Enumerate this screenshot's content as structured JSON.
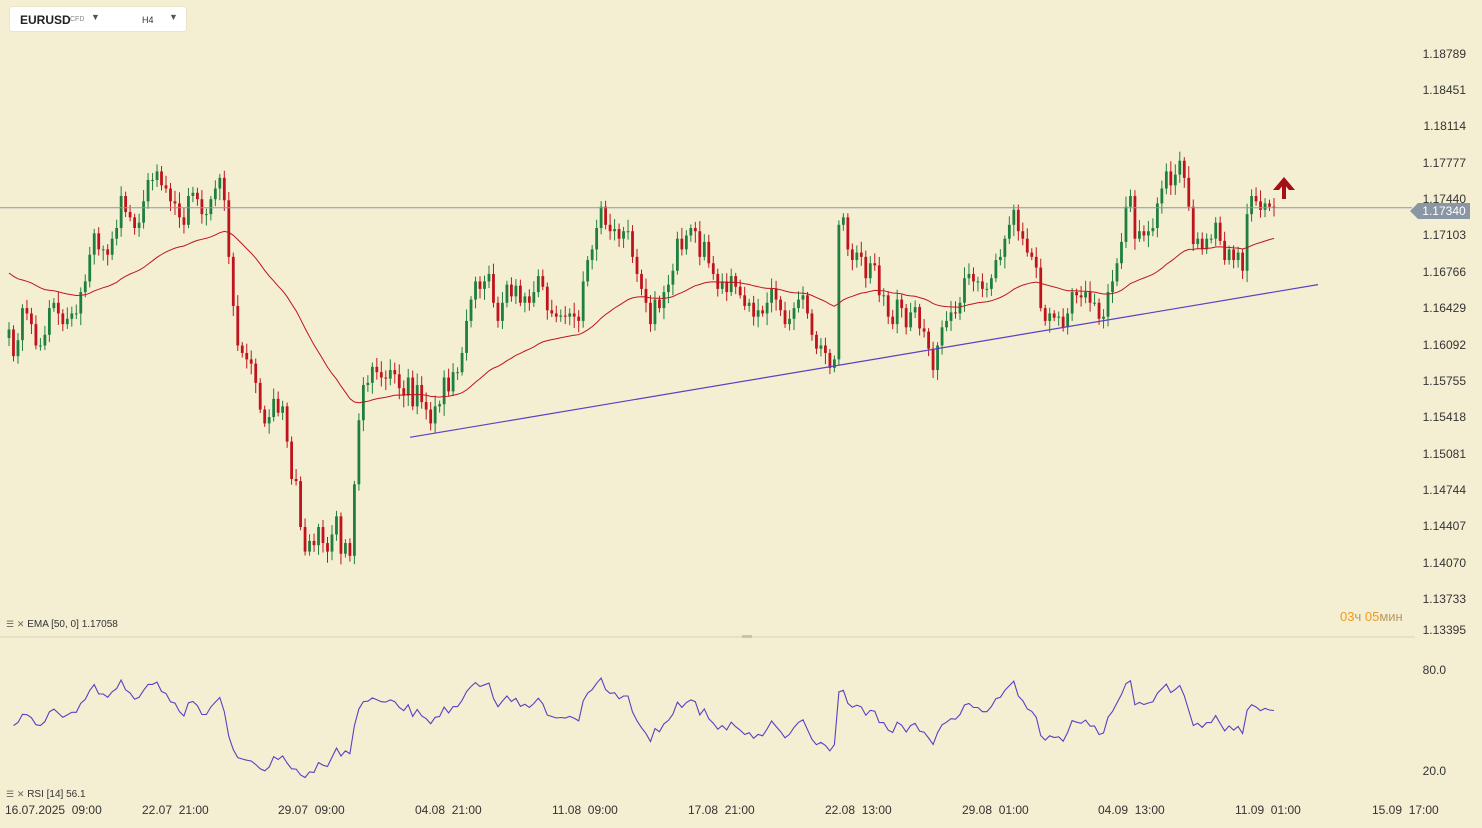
{
  "toolbar": {
    "symbol": "EURUSD",
    "symbol_type": "CFD",
    "timeframe": "H4",
    "dropdown_icon": "caret-down-icon"
  },
  "price_axis": {
    "labels": [
      "1.18789",
      "1.18451",
      "1.18114",
      "1.17777",
      "1.17440",
      "1.17103",
      "1.16766",
      "1.16429",
      "1.16092",
      "1.15755",
      "1.15418",
      "1.15081",
      "1.14744",
      "1.14407",
      "1.14070",
      "1.13733",
      "1.13395"
    ],
    "current_price": "1.17340"
  },
  "timer": {
    "hours": "03",
    "hours_unit": "ч",
    "minutes": "05",
    "minutes_unit": "мин"
  },
  "indicators": {
    "ema": {
      "label": "EMA",
      "params": "[50, 0]",
      "value": "1.17058"
    },
    "rsi": {
      "label": "RSI",
      "params": "[14]",
      "value": "56.1"
    }
  },
  "rsi_axis": {
    "labels": [
      "80.0",
      "20.0"
    ]
  },
  "time_axis": {
    "labels": [
      "16.07.2025  09:00",
      "22.07  21:00",
      "29.07  09:00",
      "04.08  21:00",
      "11.08  09:00",
      "17.08  21:00",
      "22.08  13:00",
      "29.08  01:00",
      "04.09  13:00",
      "11.09  01:00",
      "15.09  17:00"
    ]
  },
  "colors": {
    "background": "#f4efd2",
    "bull": "#1f7f3e",
    "bear": "#c0141c",
    "ema": "#c0141c",
    "trendline": "#5b3fc4",
    "rsi": "#5b3fc4",
    "signal_arrow": "#a30f14",
    "price_line": "#8a96a4"
  },
  "chart_data": {
    "type": "candlestick",
    "price_range": [
      1.13395,
      1.19
    ],
    "rsi_range": [
      0,
      100
    ],
    "signal": "arrow-up",
    "trendline": {
      "from": [
        "04.08 21:00",
        1.1519
      ],
      "to": [
        "12.09",
        1.1662
      ]
    },
    "close": [
      1.162,
      1.1595,
      1.161,
      1.164,
      1.1635,
      1.1625,
      1.1605,
      1.1605,
      1.1615,
      1.164,
      1.1645,
      1.1635,
      1.1625,
      1.163,
      1.1635,
      1.1635,
      1.1655,
      1.1665,
      1.169,
      1.171,
      1.1695,
      1.1695,
      1.169,
      1.1705,
      1.1715,
      1.1745,
      1.173,
      1.1725,
      1.1715,
      1.172,
      1.174,
      1.176,
      1.176,
      1.1768,
      1.1755,
      1.1752,
      1.174,
      1.1738,
      1.1725,
      1.1718,
      1.1745,
      1.1748,
      1.1742,
      1.1728,
      1.1728,
      1.1742,
      1.1752,
      1.1762,
      1.1741,
      1.1688,
      1.1642,
      1.1605,
      1.1598,
      1.1592,
      1.1588,
      1.157,
      1.1545,
      1.1532,
      1.1538,
      1.1555,
      1.1542,
      1.1548,
      1.1515,
      1.148,
      1.1478,
      1.1435,
      1.1412,
      1.1422,
      1.1418,
      1.1435,
      1.142,
      1.1412,
      1.1428,
      1.1445,
      1.141,
      1.142,
      1.1408,
      1.1475,
      1.1535,
      1.1568,
      1.157,
      1.1585,
      1.158,
      1.1575,
      1.1574,
      1.1582,
      1.1578,
      1.1565,
      1.1558,
      1.1575,
      1.1548,
      1.1568,
      1.1552,
      1.1545,
      1.1532,
      1.1548,
      1.155,
      1.1575,
      1.1562,
      1.158,
      1.158,
      1.1598,
      1.1628,
      1.1648,
      1.1665,
      1.1658,
      1.1665,
      1.1672,
      1.1645,
      1.1628,
      1.1645,
      1.1662,
      1.1651,
      1.1661,
      1.1645,
      1.1651,
      1.1645,
      1.1655,
      1.167,
      1.166,
      1.1638,
      1.1635,
      1.1632,
      1.1633,
      1.1632,
      1.1635,
      1.1632,
      1.1628,
      1.1665,
      1.1685,
      1.1695,
      1.1715,
      1.1735,
      1.1718,
      1.1712,
      1.1714,
      1.1705,
      1.1712,
      1.1712,
      1.1688,
      1.1672,
      1.1658,
      1.1645,
      1.1625,
      1.1648,
      1.164,
      1.1655,
      1.1662,
      1.1675,
      1.1705,
      1.1695,
      1.1708,
      1.1715,
      1.1712,
      1.1688,
      1.1702,
      1.1682,
      1.1672,
      1.1658,
      1.1665,
      1.1655,
      1.167,
      1.166,
      1.1652,
      1.1642,
      1.1645,
      1.1632,
      1.1638,
      1.1635,
      1.1645,
      1.1658,
      1.1648,
      1.1638,
      1.1625,
      1.163,
      1.164,
      1.1648,
      1.1652,
      1.1635,
      1.1615,
      1.1602,
      1.1605,
      1.1598,
      1.1584,
      1.1592,
      1.1718,
      1.1725,
      1.1695,
      1.1685,
      1.1692,
      1.1688,
      1.1668,
      1.1682,
      1.168,
      1.1652,
      1.1652,
      1.1632,
      1.1625,
      1.1648,
      1.164,
      1.1622,
      1.1636,
      1.1641,
      1.1621,
      1.1618,
      1.1602,
      1.1582,
      1.1605,
      1.1622,
      1.1628,
      1.1636,
      1.1635,
      1.1645,
      1.1668,
      1.1672,
      1.1665,
      1.1665,
      1.1658,
      1.1658,
      1.1668,
      1.1685,
      1.1688,
      1.1705,
      1.1718,
      1.1732,
      1.1712,
      1.1705,
      1.1692,
      1.1688,
      1.1678,
      1.164,
      1.1628,
      1.1635,
      1.1631,
      1.1632,
      1.1622,
      1.1635,
      1.1655,
      1.1652,
      1.165,
      1.1655,
      1.1645,
      1.1645,
      1.163,
      1.1632,
      1.1655,
      1.1665,
      1.1682,
      1.1702,
      1.1735,
      1.1745,
      1.1705,
      1.1712,
      1.1708,
      1.1712,
      1.1715,
      1.1738,
      1.1752,
      1.1768,
      1.1755,
      1.1765,
      1.1778,
      1.1762,
      1.1735,
      1.17,
      1.1705,
      1.1695,
      1.1705,
      1.1705,
      1.172,
      1.1703,
      1.1685,
      1.1695,
      1.1685,
      1.1692,
      1.1675,
      1.1728,
      1.1745,
      1.174,
      1.1732,
      1.1738,
      1.1735,
      1.1734
    ],
    "ema50_first_value": 1.1675,
    "ema50_last_value": 1.17058,
    "rsi_last_value": 56.1
  }
}
